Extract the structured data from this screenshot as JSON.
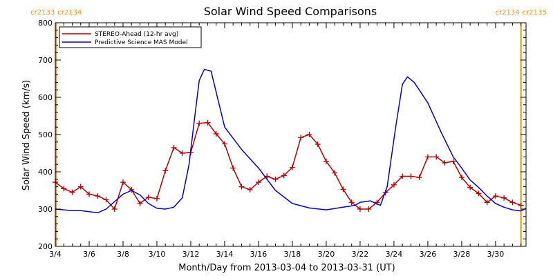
{
  "chart_data": {
    "type": "line",
    "title": "Solar Wind Speed Comparisons",
    "xlabel": "Month/Day from 2013-03-04 to 2013-03-31 (UT)",
    "ylabel": "Solar Wind Speed (km/s)",
    "xlim": [
      0,
      27.8
    ],
    "ylim": [
      200,
      800
    ],
    "y_ticks": [
      200,
      300,
      400,
      500,
      600,
      700,
      800
    ],
    "x_ticks": [
      {
        "x": 0,
        "label": "3/4"
      },
      {
        "x": 2,
        "label": "3/6"
      },
      {
        "x": 4,
        "label": "3/8"
      },
      {
        "x": 6,
        "label": "3/10"
      },
      {
        "x": 8,
        "label": "3/12"
      },
      {
        "x": 10,
        "label": "3/14"
      },
      {
        "x": 12,
        "label": "3/16"
      },
      {
        "x": 14,
        "label": "3/18"
      },
      {
        "x": 16,
        "label": "3/20"
      },
      {
        "x": 18,
        "label": "3/22"
      },
      {
        "x": 20,
        "label": "3/24"
      },
      {
        "x": 22,
        "label": "3/26"
      },
      {
        "x": 24,
        "label": "3/28"
      },
      {
        "x": 26,
        "label": "3/30"
      }
    ],
    "legend": "top-left",
    "carrington_rotations": [
      {
        "x": 0.05,
        "left": "cr2133",
        "right": "cr2134"
      },
      {
        "x": 27.5,
        "left": "cr2134",
        "right": "cr2135"
      }
    ],
    "series": [
      {
        "name": "STEREO-Ahead (12-hr avg)",
        "color": "#b00000",
        "marker": "plus",
        "x": [
          0.0,
          0.5,
          1.0,
          1.5,
          2.0,
          2.5,
          3.0,
          3.5,
          4.0,
          4.5,
          5.0,
          5.5,
          6.0,
          6.5,
          7.0,
          7.5,
          8.0,
          8.5,
          9.0,
          9.5,
          10.0,
          10.5,
          11.0,
          11.5,
          12.0,
          12.5,
          13.0,
          13.5,
          14.0,
          14.5,
          15.0,
          15.5,
          16.0,
          16.5,
          17.0,
          17.5,
          18.0,
          18.5,
          19.0,
          19.5,
          20.0,
          20.5,
          21.0,
          21.5,
          22.0,
          22.5,
          23.0,
          23.5,
          24.0,
          24.5,
          25.0,
          25.5,
          26.0,
          26.5,
          27.0,
          27.5
        ],
        "y": [
          372,
          355,
          345,
          360,
          340,
          335,
          325,
          300,
          372,
          352,
          315,
          332,
          328,
          403,
          465,
          450,
          452,
          530,
          532,
          502,
          475,
          410,
          360,
          352,
          372,
          388,
          380,
          390,
          412,
          492,
          500,
          474,
          428,
          397,
          353,
          318,
          300,
          300,
          318,
          344,
          365,
          388,
          388,
          385,
          440,
          440,
          424,
          428,
          385,
          358,
          342,
          318,
          335,
          330,
          318,
          310
        ]
      },
      {
        "name": "Predictive Science MAS Model",
        "color": "#0000c8",
        "marker": "none",
        "x": [
          0.0,
          0.5,
          1.0,
          1.5,
          2.0,
          2.5,
          3.0,
          3.5,
          4.0,
          4.5,
          5.0,
          5.5,
          6.0,
          6.5,
          7.0,
          7.5,
          7.9,
          8.2,
          8.5,
          8.8,
          9.2,
          10.0,
          11.0,
          12.0,
          13.0,
          14.0,
          15.0,
          16.0,
          17.0,
          17.7,
          18.0,
          18.6,
          19.2,
          19.6,
          20.1,
          20.5,
          20.8,
          21.2,
          22.0,
          22.8,
          23.5,
          24.0,
          24.5,
          25.0,
          25.5,
          26.0,
          26.5,
          27.0,
          27.5,
          27.8
        ],
        "y": [
          300,
          298,
          296,
          296,
          293,
          290,
          300,
          320,
          340,
          350,
          338,
          315,
          302,
          300,
          305,
          330,
          420,
          535,
          645,
          675,
          670,
          520,
          460,
          410,
          350,
          315,
          303,
          298,
          305,
          310,
          318,
          322,
          310,
          360,
          520,
          635,
          655,
          640,
          585,
          505,
          440,
          410,
          378,
          358,
          335,
          315,
          305,
          298,
          295,
          302
        ]
      }
    ]
  }
}
